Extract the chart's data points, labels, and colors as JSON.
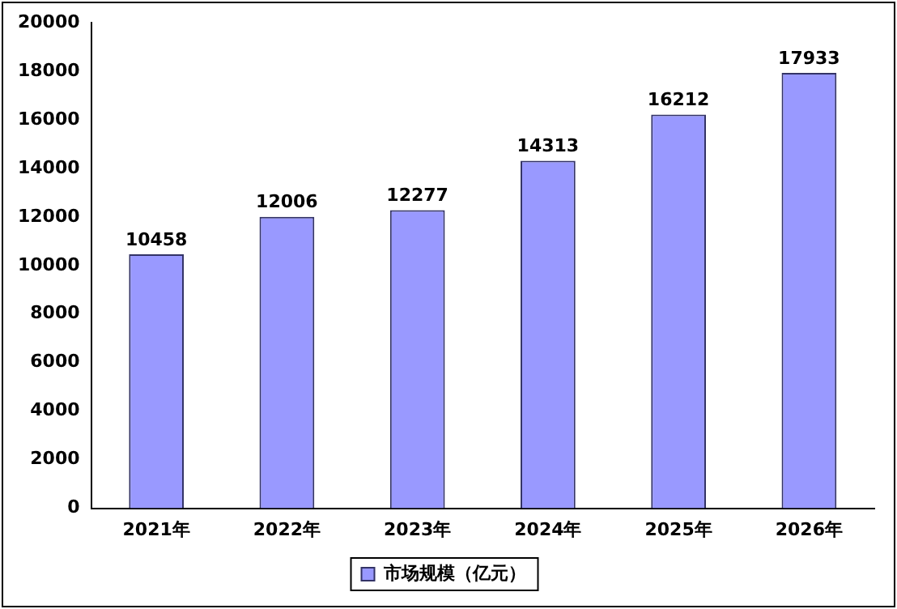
{
  "chart_data": {
    "type": "bar",
    "categories": [
      "2021年",
      "2022年",
      "2023年",
      "2024年",
      "2025年",
      "2026年"
    ],
    "series": [
      {
        "name": "市场规模（亿元）",
        "color": "#9999ff",
        "values": [
          10458,
          12006,
          12277,
          14313,
          16212,
          17933
        ]
      }
    ],
    "ylim": [
      0,
      20000
    ],
    "yticks": [
      0,
      2000,
      4000,
      6000,
      8000,
      10000,
      12000,
      14000,
      16000,
      18000,
      20000
    ],
    "grid": false,
    "legend": "bottom",
    "data_labels": true
  }
}
